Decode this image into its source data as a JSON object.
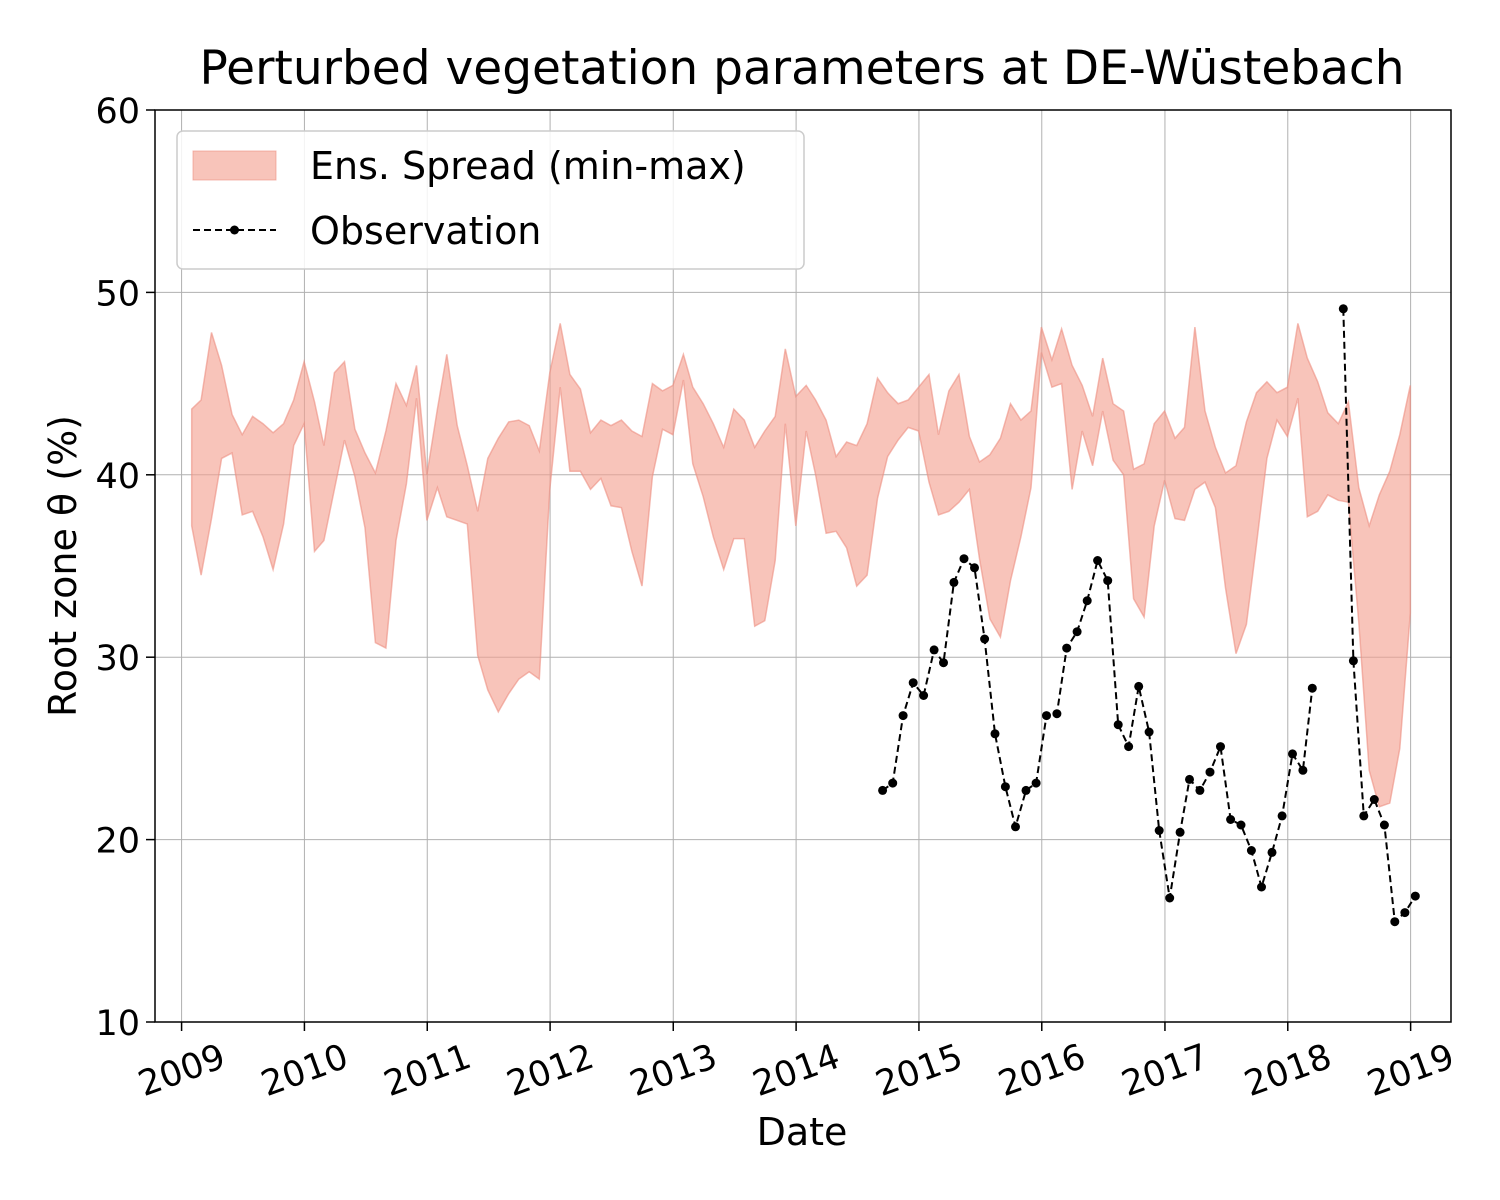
{
  "chart_data": {
    "type": "line",
    "title": "Perturbed vegetation parameters at DE-Wüstebach",
    "xlabel": "Date",
    "ylabel": "Root zone θ  (%)",
    "ylim": [
      10,
      60
    ],
    "xlim": [
      "2008-10-14",
      "2019-05-01"
    ],
    "yticks": [
      10,
      20,
      30,
      40,
      50,
      60
    ],
    "xticks": [
      "2009",
      "2010",
      "2011",
      "2012",
      "2013",
      "2014",
      "2015",
      "2016",
      "2017",
      "2018",
      "2019"
    ],
    "grid": true,
    "legend_position": "top-left",
    "colors": {
      "band_fill": "#f4a090",
      "band_edge": "#ec8e80",
      "observation": "#000000"
    },
    "series": [
      {
        "name": "Ens. Spread (min-max)",
        "kind": "band",
        "x": [
          "2009-01-31",
          "2009-02-28",
          "2009-03-31",
          "2009-04-30",
          "2009-05-31",
          "2009-06-30",
          "2009-07-31",
          "2009-08-31",
          "2009-09-30",
          "2009-10-31",
          "2009-11-30",
          "2009-12-31",
          "2010-01-31",
          "2010-02-28",
          "2010-03-31",
          "2010-04-30",
          "2010-05-31",
          "2010-06-30",
          "2010-07-31",
          "2010-08-31",
          "2010-09-30",
          "2010-10-31",
          "2010-11-30",
          "2010-12-31",
          "2011-01-31",
          "2011-02-28",
          "2011-03-31",
          "2011-04-30",
          "2011-05-31",
          "2011-06-30",
          "2011-07-31",
          "2011-08-31",
          "2011-09-30",
          "2011-10-31",
          "2011-11-30",
          "2011-12-31",
          "2012-01-31",
          "2012-02-29",
          "2012-03-31",
          "2012-04-30",
          "2012-05-31",
          "2012-06-30",
          "2012-07-31",
          "2012-08-31",
          "2012-09-30",
          "2012-10-31",
          "2012-11-30",
          "2012-12-31",
          "2013-01-31",
          "2013-02-28",
          "2013-03-31",
          "2013-04-30",
          "2013-05-31",
          "2013-06-30",
          "2013-07-31",
          "2013-08-31",
          "2013-09-30",
          "2013-10-31",
          "2013-11-30",
          "2013-12-31",
          "2014-01-31",
          "2014-02-28",
          "2014-03-31",
          "2014-04-30",
          "2014-05-31",
          "2014-06-30",
          "2014-07-31",
          "2014-08-31",
          "2014-09-30",
          "2014-10-31",
          "2014-11-30",
          "2014-12-31",
          "2015-01-31",
          "2015-02-28",
          "2015-03-31",
          "2015-04-30",
          "2015-05-31",
          "2015-06-30",
          "2015-07-31",
          "2015-08-31",
          "2015-09-30",
          "2015-10-31",
          "2015-11-30",
          "2015-12-31",
          "2016-01-31",
          "2016-02-29",
          "2016-03-31",
          "2016-04-30",
          "2016-05-31",
          "2016-06-30",
          "2016-07-31",
          "2016-08-31",
          "2016-09-30",
          "2016-10-31",
          "2016-11-30",
          "2016-12-31",
          "2017-01-31",
          "2017-02-28",
          "2017-03-31",
          "2017-04-30",
          "2017-05-31",
          "2017-06-30",
          "2017-07-31",
          "2017-08-31",
          "2017-09-30",
          "2017-10-31",
          "2017-11-30",
          "2017-12-31",
          "2018-01-31",
          "2018-02-28",
          "2018-03-31",
          "2018-04-30",
          "2018-05-31",
          "2018-06-30",
          "2018-07-31",
          "2018-08-31",
          "2018-09-30",
          "2018-10-31",
          "2018-11-30",
          "2018-12-31"
        ],
        "max": [
          43.6,
          44.1,
          47.8,
          46.0,
          43.3,
          42.2,
          43.2,
          42.8,
          42.3,
          42.8,
          44.1,
          46.2,
          44.0,
          41.6,
          45.6,
          46.2,
          42.5,
          41.2,
          40.1,
          42.4,
          45.0,
          43.8,
          46.0,
          40.0,
          43.6,
          46.6,
          42.7,
          40.5,
          38.0,
          40.9,
          42.0,
          42.9,
          43.0,
          42.7,
          41.3,
          45.6,
          48.3,
          45.5,
          44.7,
          42.3,
          43.0,
          42.7,
          43.0,
          42.4,
          42.1,
          45.0,
          44.6,
          44.9,
          46.6,
          44.8,
          43.9,
          42.8,
          41.5,
          43.6,
          43.0,
          41.5,
          42.4,
          43.2,
          46.9,
          44.3,
          44.9,
          44.1,
          43.0,
          41.0,
          41.8,
          41.6,
          42.8,
          45.3,
          44.5,
          43.9,
          44.1,
          44.8,
          45.5,
          42.2,
          44.6,
          45.5,
          42.1,
          40.7,
          41.1,
          42.0,
          43.9,
          43.0,
          43.5,
          48.1,
          46.3,
          48.0,
          46.0,
          44.9,
          43.2,
          46.4,
          43.9,
          43.5,
          40.3,
          40.6,
          42.8,
          43.5,
          42.0,
          42.6,
          48.1,
          43.5,
          41.5,
          40.1,
          40.5,
          42.9,
          44.5,
          45.1,
          44.5,
          44.8,
          48.3,
          46.4,
          45.1,
          43.4,
          42.8,
          44.0,
          39.3,
          37.2,
          38.9,
          40.2,
          42.2,
          44.9
        ],
        "min": [
          37.2,
          34.5,
          37.6,
          40.9,
          41.2,
          37.8,
          38.0,
          36.6,
          34.8,
          37.3,
          41.6,
          42.8,
          35.8,
          36.4,
          39.2,
          41.9,
          39.9,
          37.1,
          30.8,
          30.5,
          36.4,
          39.5,
          44.2,
          37.5,
          39.3,
          37.7,
          37.5,
          37.3,
          30.1,
          28.2,
          27.0,
          28.0,
          28.8,
          29.2,
          28.8,
          39.2,
          44.8,
          40.2,
          40.2,
          39.2,
          39.8,
          38.3,
          38.2,
          35.8,
          33.9,
          39.9,
          42.5,
          42.2,
          45.2,
          40.6,
          38.8,
          36.6,
          34.8,
          36.5,
          36.5,
          31.7,
          32.0,
          35.3,
          42.8,
          37.2,
          42.4,
          40.0,
          36.8,
          36.9,
          36.0,
          33.9,
          34.5,
          38.7,
          41.0,
          41.9,
          42.6,
          42.4,
          39.6,
          37.8,
          38.0,
          38.5,
          39.2,
          35.4,
          32.1,
          31.1,
          34.2,
          36.6,
          39.3,
          46.7,
          44.8,
          45.0,
          39.2,
          42.4,
          40.5,
          43.5,
          40.8,
          40.0,
          33.2,
          32.2,
          37.2,
          39.7,
          37.6,
          37.5,
          39.2,
          39.6,
          38.2,
          33.8,
          30.2,
          31.8,
          36.2,
          40.9,
          43.0,
          42.1,
          44.2,
          37.7,
          38.0,
          38.9,
          38.6,
          38.5,
          31.9,
          23.8,
          21.8,
          22.0,
          25.0,
          32.4
        ]
      },
      {
        "name": "Observation",
        "kind": "line",
        "x": [
          "2014-09-15",
          "2014-10-15",
          "2014-11-15",
          "2014-12-15",
          "2015-01-15",
          "2015-02-15",
          "2015-03-15",
          "2015-04-15",
          "2015-05-15",
          "2015-06-15",
          "2015-07-15",
          "2015-08-15",
          "2015-09-15",
          "2015-10-15",
          "2015-11-15",
          "2015-12-15",
          "2016-01-15",
          "2016-02-15",
          "2016-03-15",
          "2016-04-15",
          "2016-05-15",
          "2016-06-15",
          "2016-07-15",
          "2016-08-15",
          "2016-09-15",
          "2016-10-15",
          "2016-11-15",
          "2016-12-15",
          "2017-01-15",
          "2017-02-15",
          "2017-03-15",
          "2017-04-15",
          "2017-05-15",
          "2017-06-15",
          "2017-07-15",
          "2017-08-15",
          "2017-09-15",
          "2017-10-15",
          "2017-11-15",
          "2017-12-15",
          "2018-01-15",
          "2018-02-15",
          "2018-03-15",
          null,
          "2018-06-15",
          "2018-07-15",
          "2018-08-15",
          "2018-09-15",
          "2018-10-15",
          "2018-11-15",
          "2018-12-15",
          "2019-01-15"
        ],
        "y": [
          22.7,
          23.1,
          26.8,
          28.6,
          27.9,
          30.4,
          29.7,
          34.1,
          35.4,
          34.9,
          31.0,
          25.8,
          22.9,
          20.7,
          22.7,
          23.1,
          26.8,
          26.9,
          30.5,
          31.4,
          33.1,
          35.3,
          34.2,
          26.3,
          25.1,
          28.4,
          25.9,
          20.5,
          16.8,
          20.4,
          23.3,
          22.7,
          23.7,
          25.1,
          21.1,
          20.8,
          19.4,
          17.4,
          19.3,
          21.3,
          24.7,
          23.8,
          28.3,
          null,
          49.1,
          29.8,
          21.3,
          22.2,
          20.8,
          15.5,
          16.0,
          16.9
        ]
      }
    ]
  }
}
